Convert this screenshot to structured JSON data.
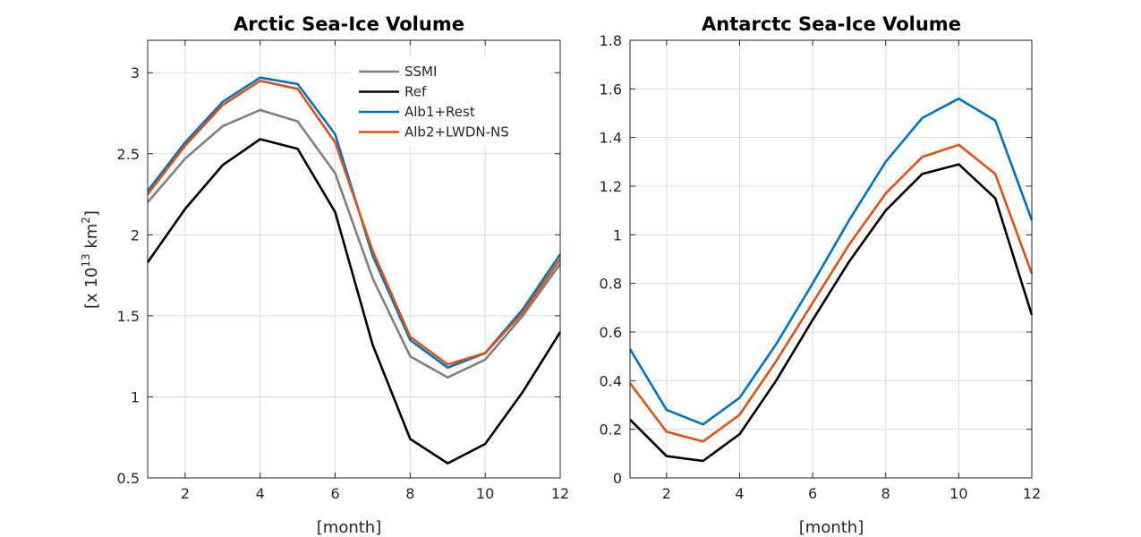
{
  "chart_data": [
    {
      "type": "line",
      "title": "Arctic Sea-Ice Volume",
      "xlabel": "[month]",
      "ylabel_prefix": "[x 10",
      "ylabel_exp": "13",
      "ylabel_mid": " km",
      "ylabel_exp2": "2",
      "ylabel_suffix": "]",
      "xlim": [
        1,
        12
      ],
      "ylim": [
        0.5,
        3.2
      ],
      "xticks": [
        2,
        4,
        6,
        8,
        10,
        12
      ],
      "yticks": [
        0.5,
        1,
        1.5,
        2,
        2.5,
        3
      ],
      "ytick_labels": [
        "0.5",
        "1",
        "1.5",
        "2",
        "2.5",
        "3"
      ],
      "grid": true,
      "legend_position": "top-right",
      "x": [
        1,
        2,
        3,
        4,
        5,
        6,
        7,
        8,
        9,
        10,
        11,
        12
      ],
      "series": [
        {
          "name": "SSMI",
          "color": "#808080",
          "values": [
            2.2,
            2.47,
            2.67,
            2.77,
            2.7,
            2.38,
            1.73,
            1.25,
            1.12,
            1.23,
            1.5,
            1.82
          ]
        },
        {
          "name": "Ref",
          "color": "#000000",
          "values": [
            1.83,
            2.16,
            2.43,
            2.59,
            2.53,
            2.14,
            1.32,
            0.74,
            0.59,
            0.71,
            1.03,
            1.4
          ]
        },
        {
          "name": "Alb1+Rest",
          "color": "#0072BD",
          "values": [
            2.27,
            2.57,
            2.82,
            2.97,
            2.93,
            2.62,
            1.87,
            1.35,
            1.18,
            1.27,
            1.54,
            1.88
          ]
        },
        {
          "name": "Alb2+LWDN-NS",
          "color": "#D95319",
          "values": [
            2.25,
            2.55,
            2.8,
            2.95,
            2.9,
            2.57,
            1.9,
            1.37,
            1.2,
            1.27,
            1.52,
            1.85
          ]
        }
      ]
    },
    {
      "type": "line",
      "title": "Antarctc Sea-Ice Volume",
      "xlabel": "[month]",
      "xlim": [
        1,
        12
      ],
      "ylim": [
        0,
        1.8
      ],
      "xticks": [
        2,
        4,
        6,
        8,
        10,
        12
      ],
      "yticks": [
        0,
        0.2,
        0.4,
        0.6,
        0.8,
        1,
        1.2,
        1.4,
        1.6,
        1.8
      ],
      "ytick_labels": [
        "0",
        "0.2",
        "0.4",
        "0.6",
        "0.8",
        "1",
        "1.2",
        "1.4",
        "1.6",
        "1.8"
      ],
      "grid": true,
      "x": [
        1,
        2,
        3,
        4,
        5,
        6,
        7,
        8,
        9,
        10,
        11,
        12
      ],
      "series": [
        {
          "color": "#0072BD",
          "values": [
            0.53,
            0.28,
            0.22,
            0.33,
            0.55,
            0.8,
            1.06,
            1.3,
            1.48,
            1.56,
            1.47,
            1.06
          ]
        },
        {
          "color": "#D95319",
          "values": [
            0.39,
            0.19,
            0.15,
            0.26,
            0.48,
            0.72,
            0.96,
            1.17,
            1.32,
            1.37,
            1.25,
            0.84
          ]
        },
        {
          "color": "#000000",
          "values": [
            0.24,
            0.09,
            0.07,
            0.18,
            0.4,
            0.65,
            0.89,
            1.1,
            1.25,
            1.29,
            1.15,
            0.67
          ]
        }
      ]
    }
  ]
}
